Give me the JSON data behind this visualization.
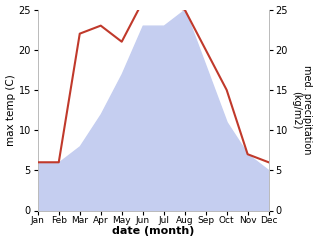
{
  "months": [
    "Jan",
    "Feb",
    "Mar",
    "Apr",
    "May",
    "Jun",
    "Jul",
    "Aug",
    "Sep",
    "Oct",
    "Nov",
    "Dec"
  ],
  "temperature": [
    6.0,
    6.0,
    22.0,
    23.0,
    21.0,
    26.0,
    25.5,
    25.0,
    20.0,
    15.0,
    7.0,
    6.0
  ],
  "precipitation": [
    6,
    6,
    8,
    12,
    17,
    23,
    23,
    25,
    18,
    11,
    7,
    5
  ],
  "temp_color": "#c0392b",
  "precip_color": "#c5cef0",
  "ylabel_left": "max temp (C)",
  "ylabel_right": "med. precipitation\n(kg/m2)",
  "xlabel": "date (month)",
  "ylim_left": [
    0,
    25
  ],
  "ylim_right": [
    0,
    25
  ],
  "yticks_left": [
    0,
    5,
    10,
    15,
    20,
    25
  ],
  "yticks_right": [
    0,
    5,
    10,
    15,
    20,
    25
  ],
  "background_color": "#ffffff"
}
